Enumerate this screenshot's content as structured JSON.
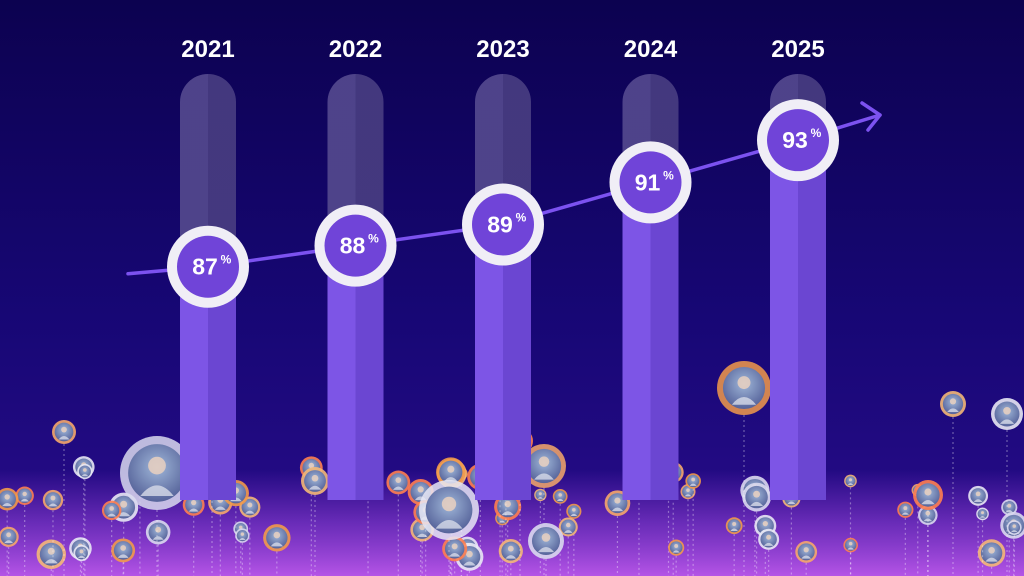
{
  "chart_data": {
    "type": "bar",
    "categories": [
      "2021",
      "2022",
      "2023",
      "2024",
      "2025"
    ],
    "values": [
      87,
      88,
      89,
      91,
      93
    ],
    "value_suffix": "%",
    "title": "",
    "xlabel": "",
    "ylabel": "",
    "grid": false,
    "legend": "none",
    "trend_arrow": true
  },
  "colors": {
    "background_top": "#0c0250",
    "background_bottom": "#2a0d8c",
    "pillar_track": "#4b3f8a",
    "pillar_fill": "#7b52e0",
    "pillar_fill_dark": "#6a45cf",
    "badge_ring": "#f0eef6",
    "badge_fill": "#7044d8",
    "trend_line": "#7c52f0",
    "text": "#ffffff",
    "floor_glow": "#9b3cd8"
  },
  "icons": {
    "trend": "arrow-right-icon",
    "people": "person-avatar-icon"
  }
}
